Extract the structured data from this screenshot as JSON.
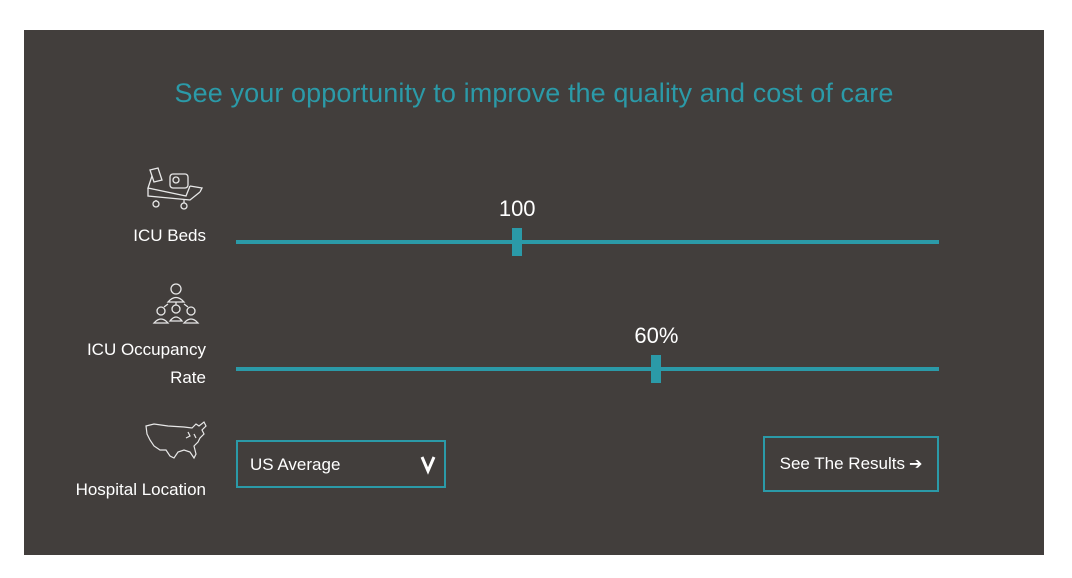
{
  "headline": "See your opportunity to improve the quality and cost of care",
  "sliders": [
    {
      "label": "ICU Beds",
      "value_text": "100",
      "position_fraction": 0.4,
      "icon": "icu-bed-icon"
    },
    {
      "label_line1": "ICU Occupancy",
      "label_line2": "Rate",
      "value_text": "60%",
      "position_fraction": 0.598,
      "icon": "people-network-icon"
    }
  ],
  "location": {
    "label": "Hospital Location",
    "icon": "us-map-icon",
    "selected": "US Average",
    "chevron": "V"
  },
  "results_button": {
    "label": "See The Results",
    "arrow": "➔"
  },
  "colors": {
    "panel": "#423e3c",
    "accent": "#2b9aa8",
    "text": "#ffffff"
  }
}
